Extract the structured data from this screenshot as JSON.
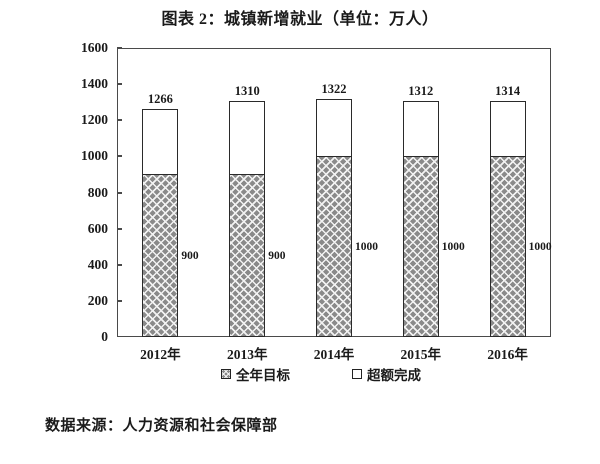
{
  "title": "图表 2：城镇新增就业（单位：万人）",
  "source_note": "数据来源：人力资源和社会保障部",
  "chart_data": {
    "type": "bar",
    "stacked": true,
    "title": "图表 2：城镇新增就业（单位：万人）",
    "categories": [
      "2012年",
      "2013年",
      "2014年",
      "2015年",
      "2016年"
    ],
    "series": [
      {
        "name": "全年目标",
        "style": "hatched",
        "values": [
          900,
          900,
          1000,
          1000,
          1000
        ]
      },
      {
        "name": "超额完成",
        "style": "white",
        "values": [
          366,
          410,
          322,
          312,
          314
        ]
      }
    ],
    "totals": [
      1266,
      1310,
      1322,
      1312,
      1314
    ],
    "target_labels": [
      "900",
      "900",
      "1000",
      "1000",
      "1000"
    ],
    "yticks": [
      0,
      200,
      400,
      600,
      800,
      1000,
      1200,
      1400,
      1600
    ],
    "ylim": [
      0,
      1600
    ],
    "grid": false,
    "legend_position": "bottom"
  },
  "colors": {
    "hatch_fill": "#8a8a8a",
    "hatch_line": "#f2f2f2",
    "bar_border": "#2a2a2a",
    "axis": "#4a4a4a",
    "text": "#1a1a1a",
    "background": "#ffffff"
  }
}
